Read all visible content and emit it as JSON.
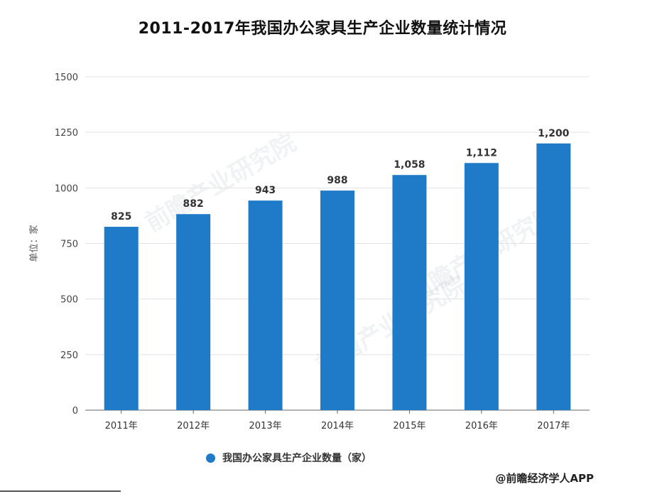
{
  "title": "2011-2017年我国办公家具生产企业数量统计情况",
  "watermark": "前瞻产业研究院",
  "credit": "@前瞻经济学人APP",
  "colors": {
    "bar": "#1f7bc8",
    "grid": "#e3e3e3",
    "axis": "#666666"
  },
  "chart_data": {
    "type": "bar",
    "title": "2011-2017年我国办公家具生产企业数量统计情况",
    "ylabel": "单位：家",
    "xlabel": "",
    "categories": [
      "2011年",
      "2012年",
      "2013年",
      "2014年",
      "2015年",
      "2016年",
      "2017年"
    ],
    "series": [
      {
        "name": "我国办公家具生产企业数量（家）",
        "values": [
          825,
          882,
          943,
          988,
          1058,
          1112,
          1200
        ],
        "labels": [
          "825",
          "882",
          "943",
          "988",
          "1,058",
          "1,112",
          "1,200"
        ]
      }
    ],
    "yticks": [
      "0",
      "250",
      "500",
      "750",
      "1000",
      "1250",
      "1500"
    ],
    "ylim": [
      0,
      1500
    ],
    "grid": true,
    "legend": "bottom"
  }
}
